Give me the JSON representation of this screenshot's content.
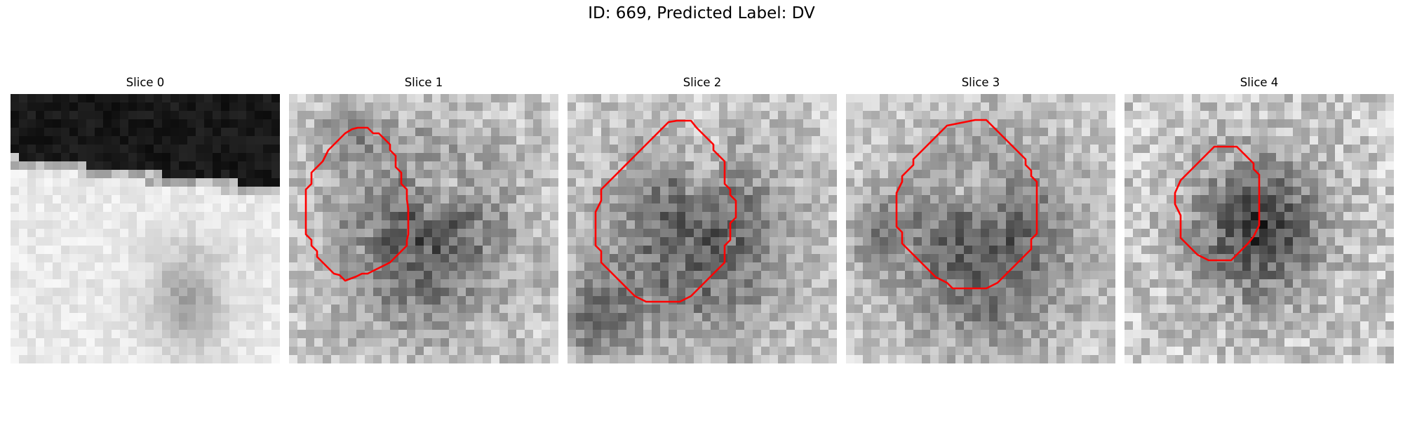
{
  "figure": {
    "title": "ID: 669, Predicted Label: DV"
  },
  "slices": [
    {
      "title": "Slice 0",
      "has_contour": false
    },
    {
      "title": "Slice 1",
      "has_contour": true
    },
    {
      "title": "Slice 2",
      "has_contour": true
    },
    {
      "title": "Slice 3",
      "has_contour": true
    },
    {
      "title": "Slice 4",
      "has_contour": true
    }
  ],
  "colors": {
    "contour": "#ff0000",
    "colormap": "grayscale"
  }
}
